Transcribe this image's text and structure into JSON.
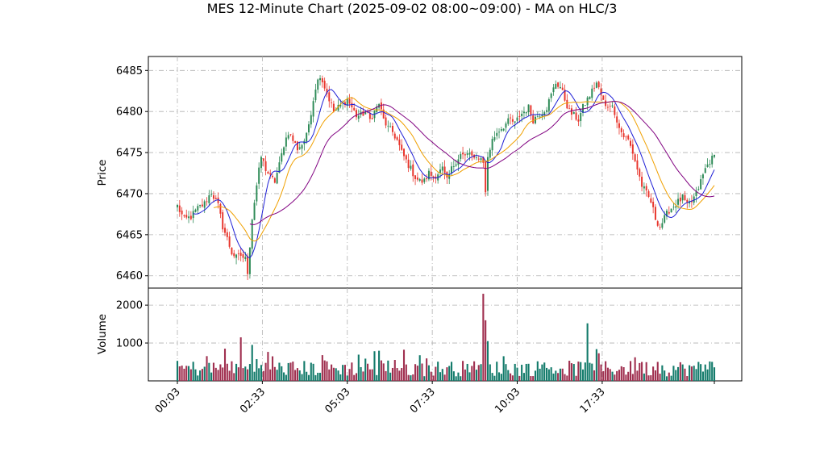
{
  "chart_data": {
    "type": "candlestick",
    "title": "MES 12-Minute Chart (2025-09-02 08:00~09:00) - MA on HLC/3",
    "price_axis": {
      "label": "Price",
      "ylim": [
        6458.5,
        6486.7
      ],
      "ticks": [
        6460,
        6465,
        6470,
        6475,
        6480,
        6485
      ]
    },
    "volume_axis": {
      "label": "Volume",
      "ylim": [
        0,
        2450
      ],
      "ticks": [
        1000,
        2000
      ]
    },
    "x_ticks": [
      "00:03",
      "02:33",
      "05:03",
      "07:33",
      "10:03",
      "17:33"
    ],
    "grid": true,
    "colors": {
      "up": "#2e8b57",
      "down": "#e8352c",
      "vol_up": "#137b6b",
      "vol_down": "#a03050",
      "ma_fast": "#1f1fd6",
      "ma_mid": "#f0a000",
      "ma_slow": "#800080"
    },
    "close_anchors": [
      [
        0,
        6468.5
      ],
      [
        3,
        6466.8
      ],
      [
        6,
        6467.2
      ],
      [
        9,
        6468.2
      ],
      [
        12,
        6468.8
      ],
      [
        15,
        6470.2
      ],
      [
        18,
        6468.5
      ],
      [
        20,
        6466.0
      ],
      [
        22,
        6464.5
      ],
      [
        24,
        6462.8
      ],
      [
        26,
        6462.2
      ],
      [
        28,
        6462.5
      ],
      [
        30,
        6462.0
      ],
      [
        31,
        6460.5
      ],
      [
        33,
        6467.0
      ],
      [
        35,
        6471.0
      ],
      [
        37,
        6474.5
      ],
      [
        39,
        6473.0
      ],
      [
        41,
        6472.0
      ],
      [
        43,
        6471.5
      ],
      [
        45,
        6473.5
      ],
      [
        47,
        6476.0
      ],
      [
        49,
        6477.5
      ],
      [
        51,
        6476.5
      ],
      [
        53,
        6475.5
      ],
      [
        55,
        6476.0
      ],
      [
        57,
        6477.0
      ],
      [
        59,
        6480.0
      ],
      [
        61,
        6483.0
      ],
      [
        63,
        6484.5
      ],
      [
        65,
        6483.0
      ],
      [
        67,
        6481.5
      ],
      [
        69,
        6480.0
      ],
      [
        71,
        6480.5
      ],
      [
        73,
        6481.0
      ],
      [
        75,
        6481.5
      ],
      [
        77,
        6480.5
      ],
      [
        79,
        6479.5
      ],
      [
        81,
        6479.5
      ],
      [
        83,
        6480.0
      ],
      [
        85,
        6479.0
      ],
      [
        87,
        6480.0
      ],
      [
        89,
        6481.0
      ],
      [
        91,
        6479.0
      ],
      [
        93,
        6478.0
      ],
      [
        95,
        6477.5
      ],
      [
        97,
        6476.5
      ],
      [
        99,
        6475.0
      ],
      [
        101,
        6474.0
      ],
      [
        103,
        6473.0
      ],
      [
        105,
        6472.0
      ],
      [
        107,
        6471.5
      ],
      [
        109,
        6471.5
      ],
      [
        111,
        6472.5
      ],
      [
        113,
        6472.0
      ],
      [
        115,
        6472.5
      ],
      [
        117,
        6473.0
      ],
      [
        119,
        6471.5
      ],
      [
        121,
        6473.0
      ],
      [
        123,
        6474.0
      ],
      [
        125,
        6474.8
      ],
      [
        127,
        6474.5
      ],
      [
        129,
        6475.0
      ],
      [
        131,
        6474.0
      ],
      [
        133,
        6474.5
      ],
      [
        135,
        6474.0
      ],
      [
        136,
        6470.0
      ],
      [
        137,
        6474.5
      ],
      [
        139,
        6476.5
      ],
      [
        141,
        6477.5
      ],
      [
        143,
        6478.0
      ],
      [
        145,
        6478.5
      ],
      [
        147,
        6479.0
      ],
      [
        149,
        6478.5
      ],
      [
        151,
        6479.5
      ],
      [
        153,
        6480.0
      ],
      [
        155,
        6480.5
      ],
      [
        157,
        6479.0
      ],
      [
        159,
        6479.5
      ],
      [
        161,
        6480.0
      ],
      [
        163,
        6480.5
      ],
      [
        165,
        6482.0
      ],
      [
        167,
        6483.5
      ],
      [
        169,
        6483.0
      ],
      [
        171,
        6481.5
      ],
      [
        173,
        6480.0
      ],
      [
        175,
        6479.5
      ],
      [
        177,
        6479.0
      ],
      [
        179,
        6480.5
      ],
      [
        181,
        6481.5
      ],
      [
        183,
        6482.5
      ],
      [
        185,
        6483.5
      ],
      [
        187,
        6482.0
      ],
      [
        189,
        6480.5
      ],
      [
        191,
        6481.0
      ],
      [
        193,
        6480.0
      ],
      [
        195,
        6478.0
      ],
      [
        197,
        6477.0
      ],
      [
        199,
        6476.5
      ],
      [
        201,
        6475.0
      ],
      [
        203,
        6473.0
      ],
      [
        205,
        6471.0
      ],
      [
        207,
        6470.0
      ],
      [
        209,
        6469.0
      ],
      [
        211,
        6467.0
      ],
      [
        213,
        6466.0
      ],
      [
        215,
        6467.0
      ],
      [
        217,
        6468.0
      ],
      [
        219,
        6468.5
      ],
      [
        221,
        6469.0
      ],
      [
        223,
        6469.5
      ],
      [
        225,
        6468.5
      ],
      [
        227,
        6469.0
      ],
      [
        229,
        6470.0
      ],
      [
        231,
        6471.5
      ],
      [
        233,
        6473.0
      ],
      [
        235,
        6474.0
      ],
      [
        237,
        6474.5
      ]
    ],
    "n_bars": 238,
    "volume_spikes": [
      [
        135,
        2300
      ],
      [
        136,
        1600
      ],
      [
        181,
        1520
      ],
      [
        21,
        850
      ],
      [
        28,
        1150
      ],
      [
        33,
        950
      ],
      [
        137,
        1050
      ]
    ],
    "ma_fast_start": 6468.0,
    "ma_mid_start_index": 16,
    "ma_slow_start_index": 32
  }
}
